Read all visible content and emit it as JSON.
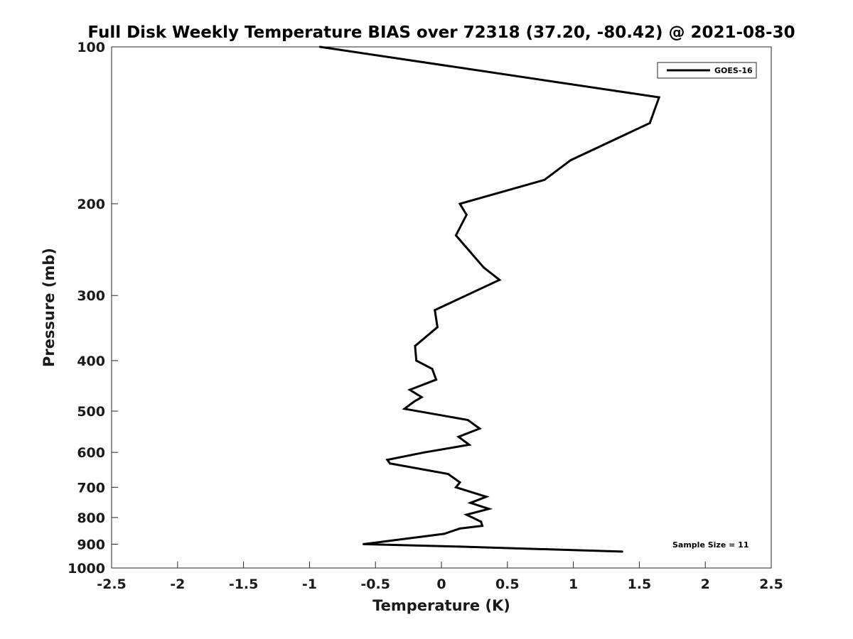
{
  "chart_data": {
    "type": "line",
    "title": "Full Disk Weekly Temperature BIAS over 72318 (37.20, -80.42) @ 2021-08-30",
    "xlabel": "Temperature (K)",
    "ylabel": "Pressure (mb)",
    "xlim": [
      -2.5,
      2.5
    ],
    "ylim": [
      100,
      1000
    ],
    "y_scale": "log",
    "y_reversed": true,
    "grid": false,
    "x_ticks": [
      -2.5,
      -2,
      -1.5,
      -1,
      -0.5,
      0,
      0.5,
      1,
      1.5,
      2,
      2.5
    ],
    "x_tick_labels": [
      "-2.5",
      "-2",
      "-1.5",
      "-1",
      "-0.5",
      "0",
      "0.5",
      "1",
      "1.5",
      "2",
      "2.5"
    ],
    "y_ticks": [
      100,
      200,
      300,
      400,
      500,
      600,
      700,
      800,
      900,
      1000
    ],
    "y_tick_labels": [
      "100",
      "200",
      "300",
      "400",
      "500",
      "600",
      "700",
      "800",
      "900",
      "1000"
    ],
    "legend": {
      "position": "top-right",
      "entries": [
        "GOES-16"
      ]
    },
    "annotation": "Sample Size = 11",
    "line_color": "#000000",
    "series": [
      {
        "name": "GOES-16",
        "x": [
          -0.92,
          1.65,
          1.58,
          0.98,
          0.78,
          0.14,
          0.19,
          0.11,
          0.32,
          0.44,
          -0.05,
          -0.03,
          -0.2,
          -0.19,
          -0.07,
          -0.04,
          -0.24,
          -0.15,
          -0.21,
          -0.28,
          0.2,
          0.29,
          0.13,
          0.21,
          -0.13,
          -0.41,
          -0.39,
          0.05,
          0.14,
          0.11,
          0.34,
          0.22,
          0.36,
          0.19,
          0.3,
          0.31,
          0.14,
          0.02,
          -0.59,
          0.14,
          1.37
        ],
        "y": [
          100,
          125,
          140,
          165,
          180,
          200,
          210,
          230,
          265,
          280,
          320,
          345,
          375,
          400,
          415,
          435,
          455,
          470,
          480,
          495,
          520,
          540,
          560,
          580,
          600,
          620,
          630,
          660,
          685,
          700,
          730,
          750,
          770,
          790,
          815,
          830,
          840,
          860,
          900,
          910,
          930
        ]
      }
    ]
  }
}
